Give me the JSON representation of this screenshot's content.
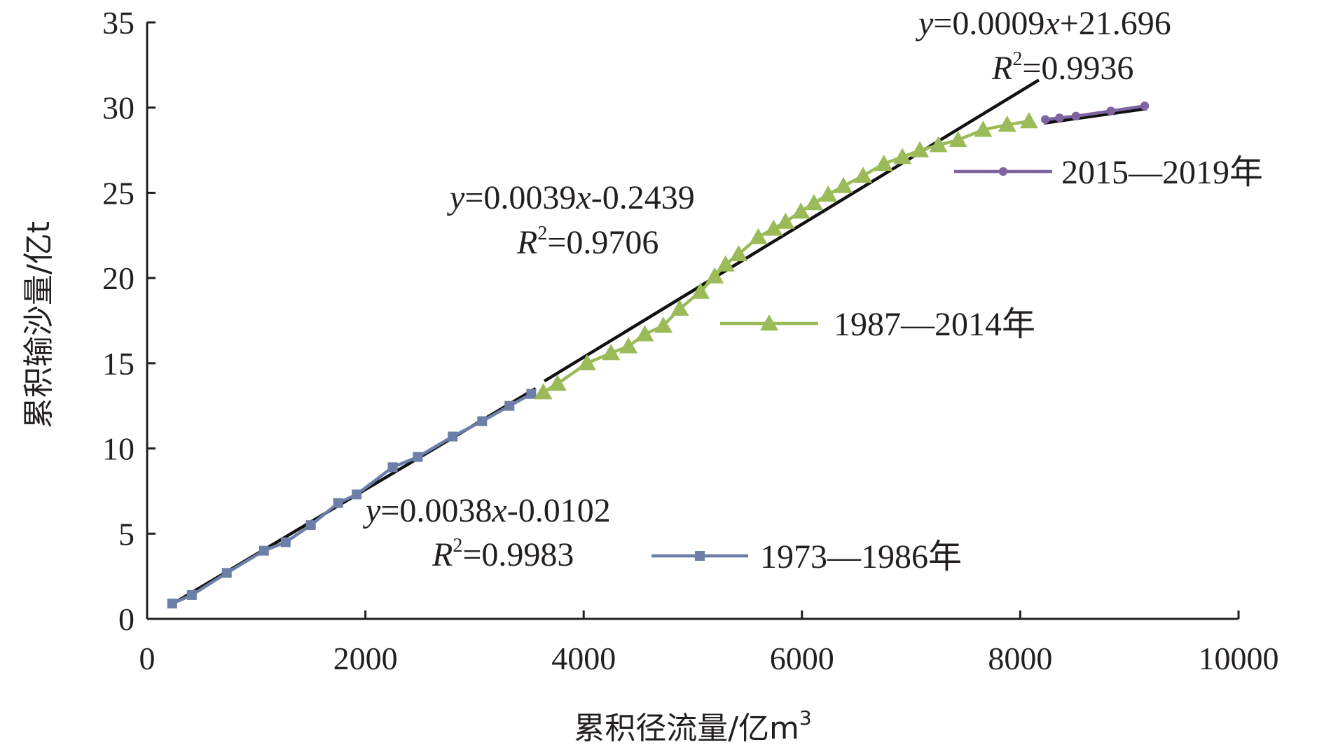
{
  "chart_data": {
    "type": "scatter",
    "xlabel": "累积径流量/亿m",
    "xlabel_sup": "3",
    "ylabel": "累积输沙量/亿t",
    "xlim": [
      0,
      10000
    ],
    "ylim": [
      0,
      35
    ],
    "x_ticks": [
      "0",
      "2000",
      "4000",
      "6000",
      "8000",
      "10000"
    ],
    "y_ticks": [
      "0",
      "5",
      "10",
      "15",
      "20",
      "25",
      "30",
      "35"
    ],
    "grid": false,
    "series": [
      {
        "name": "1973—1986年",
        "color": "#6b7fa8",
        "marker": "square",
        "points": [
          [
            230,
            0.9
          ],
          [
            410,
            1.4
          ],
          [
            730,
            2.7
          ],
          [
            1070,
            4.0
          ],
          [
            1270,
            4.5
          ],
          [
            1500,
            5.5
          ],
          [
            1750,
            6.8
          ],
          [
            1920,
            7.3
          ],
          [
            2250,
            8.9
          ],
          [
            2480,
            9.5
          ],
          [
            2800,
            10.7
          ],
          [
            3070,
            11.6
          ],
          [
            3320,
            12.5
          ],
          [
            3520,
            13.2
          ]
        ]
      },
      {
        "name": "1987—2014年",
        "color": "#9bbb59",
        "marker": "triangle",
        "points": [
          [
            3630,
            13.3
          ],
          [
            3760,
            13.8
          ],
          [
            4030,
            15.0
          ],
          [
            4250,
            15.6
          ],
          [
            4410,
            16.0
          ],
          [
            4560,
            16.7
          ],
          [
            4730,
            17.2
          ],
          [
            4880,
            18.2
          ],
          [
            5070,
            19.2
          ],
          [
            5200,
            20.1
          ],
          [
            5300,
            20.8
          ],
          [
            5420,
            21.4
          ],
          [
            5600,
            22.4
          ],
          [
            5740,
            22.9
          ],
          [
            5850,
            23.3
          ],
          [
            5990,
            23.9
          ],
          [
            6110,
            24.4
          ],
          [
            6240,
            24.9
          ],
          [
            6380,
            25.4
          ],
          [
            6560,
            26.0
          ],
          [
            6750,
            26.7
          ],
          [
            6920,
            27.1
          ],
          [
            7080,
            27.5
          ],
          [
            7250,
            27.8
          ],
          [
            7430,
            28.1
          ],
          [
            7660,
            28.7
          ],
          [
            7880,
            29.0
          ],
          [
            8080,
            29.2
          ]
        ]
      },
      {
        "name": "2015—2019年",
        "color": "#8064a2",
        "marker": "circle",
        "points": [
          [
            8230,
            29.3
          ],
          [
            8360,
            29.4
          ],
          [
            8510,
            29.5
          ],
          [
            8830,
            29.8
          ],
          [
            9140,
            30.1
          ]
        ]
      }
    ],
    "trendlines": [
      {
        "slope": 0.0038,
        "intercept": -0.0102,
        "x0": 230,
        "x1": 3560,
        "eq_prefix": "y",
        "eq_mid": "=0.0038",
        "eq_var": "x",
        "eq_rest": "-0.0102",
        "r2_label": "R",
        "r2_sup": "2",
        "r2_rest": "=0.9983"
      },
      {
        "slope": 0.0039,
        "intercept": -0.2439,
        "x0": 3640,
        "x1": 8170,
        "eq_prefix": "y",
        "eq_mid": "=0.0039",
        "eq_var": "x",
        "eq_rest": "-0.2439",
        "r2_label": "R",
        "r2_sup": "2",
        "r2_rest": "=0.9706"
      },
      {
        "slope": 0.0009,
        "intercept": 21.696,
        "x0": 8220,
        "x1": 9160,
        "eq_prefix": "y",
        "eq_mid": "=0.0009",
        "eq_var": "x",
        "eq_rest": "+21.696",
        "r2_label": "R",
        "r2_sup": "2",
        "r2_rest": "=0.9936"
      }
    ],
    "legend_layout": "inline-annotations"
  }
}
